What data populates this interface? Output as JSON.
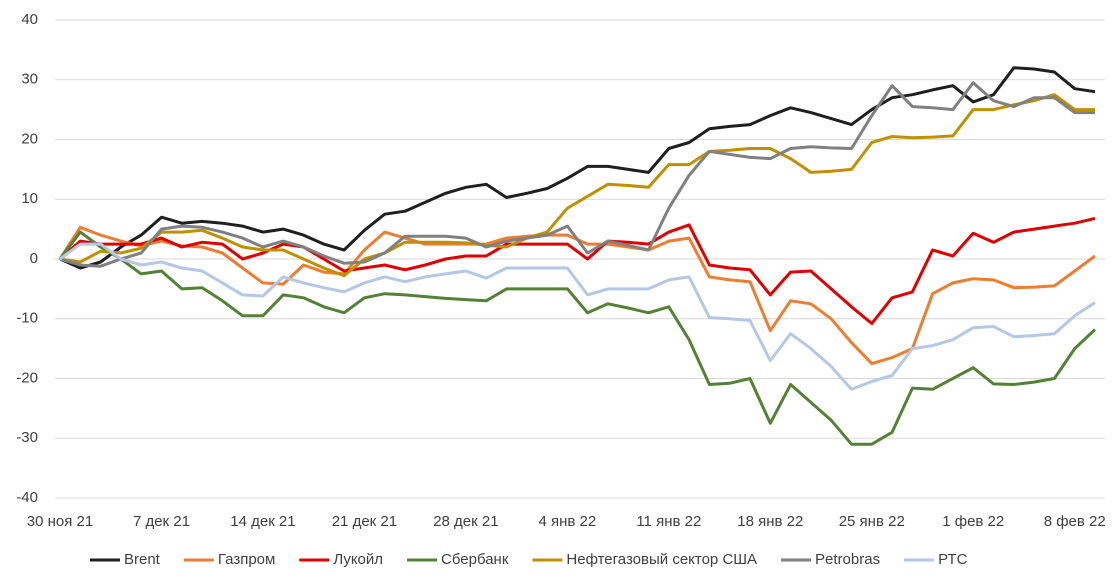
{
  "chart_data": {
    "type": "line",
    "categories": [
      "30 ноя 21",
      null,
      null,
      null,
      null,
      "7 дек 21",
      null,
      null,
      null,
      null,
      "14 дек 21",
      null,
      null,
      null,
      null,
      "21 дек 21",
      null,
      null,
      null,
      null,
      "28 дек 21",
      null,
      null,
      null,
      null,
      "4 янв 22",
      null,
      null,
      null,
      null,
      "11 янв 22",
      null,
      null,
      null,
      null,
      "18 янв 22",
      null,
      null,
      null,
      null,
      "25 янв 22",
      null,
      null,
      null,
      null,
      "1 фев 22",
      null,
      null,
      null,
      null,
      "8 фев 22",
      null
    ],
    "ylim": [
      -40,
      40
    ],
    "yticks": [
      -40,
      -30,
      -20,
      -10,
      0,
      10,
      20,
      30,
      40
    ],
    "grid": true,
    "legend": "bottom",
    "series": [
      {
        "name": "Brent",
        "color": "#1f1f1f",
        "values": [
          0,
          -1.5,
          -0.5,
          2,
          4,
          7,
          6,
          6.3,
          6,
          5.5,
          4.5,
          5,
          4,
          2.5,
          1.5,
          4.8,
          7.5,
          8,
          9.5,
          11,
          12,
          12.5,
          10.3,
          11,
          11.8,
          13.5,
          15.5,
          15.5,
          15,
          14.5,
          18.5,
          19.5,
          21.8,
          22.2,
          22.5,
          24,
          25.3,
          24.5,
          23.5,
          22.5,
          25,
          27,
          27.5,
          28.3,
          29,
          26.3,
          27.5,
          32,
          31.8,
          31.3,
          28.5,
          28
        ]
      },
      {
        "name": "Газпром",
        "color": "#ed7d31",
        "values": [
          0,
          5.3,
          4,
          3,
          2.2,
          3,
          2.2,
          2,
          1,
          -1.5,
          -4,
          -4.2,
          -1,
          -2.2,
          -2.5,
          1.5,
          4.5,
          3.5,
          2.5,
          2.5,
          2.5,
          2.5,
          3.5,
          3.8,
          4,
          4,
          2.5,
          2.5,
          2,
          1.5,
          3,
          3.5,
          -3,
          -3.5,
          -3.8,
          -12,
          -7,
          -7.5,
          -10,
          -14,
          -17.5,
          -16.5,
          -15,
          -5.8,
          -4,
          -3.3,
          -3.5,
          -4.8,
          -4.7,
          -4.5,
          -2,
          0.5
        ]
      },
      {
        "name": "Лукойл",
        "color": "#e00000",
        "values": [
          0,
          3,
          2.5,
          2.5,
          2.5,
          3.5,
          2,
          2.8,
          2.5,
          0,
          1,
          2.5,
          2,
          0,
          -2,
          -1.5,
          -1,
          -1.8,
          -1,
          0,
          0.5,
          0.5,
          2.5,
          2.5,
          2.5,
          2.5,
          0,
          3,
          2.8,
          2.5,
          4.5,
          5.7,
          -1,
          -1.5,
          -1.8,
          -6,
          -2.2,
          -2,
          -5,
          -8,
          -10.8,
          -6.5,
          -5.5,
          1.5,
          0.5,
          4.3,
          2.8,
          4.5,
          5,
          5.5,
          6,
          6.8
        ]
      },
      {
        "name": "Сбербанк",
        "color": "#548235",
        "values": [
          0,
          4.5,
          2,
          0,
          -2.5,
          -2,
          -5,
          -4.8,
          -7,
          -9.5,
          -9.5,
          -6,
          -6.5,
          -8,
          -9,
          -6.5,
          -5.8,
          -6,
          -6.3,
          -6.6,
          -6.8,
          -7,
          -5,
          -5,
          -5,
          -5,
          -9,
          -7.5,
          -8.2,
          -9,
          -8,
          -13.5,
          -21,
          -20.8,
          -20,
          -27.5,
          -21,
          -24,
          -27,
          -31,
          -31,
          -29,
          -21.6,
          -21.8,
          -20,
          -18.2,
          -20.9,
          -21,
          -20.6,
          -20,
          -15,
          -11.8
        ]
      },
      {
        "name": "Нефтегазовый сектор США",
        "color": "#bf9000",
        "values": [
          0,
          -0.5,
          1.3,
          1,
          1.8,
          4.5,
          4.5,
          4.8,
          3.5,
          2,
          1.5,
          1.5,
          0,
          -1.5,
          -2.8,
          0,
          1,
          2.8,
          2.8,
          2.8,
          2.7,
          2.3,
          2,
          3.5,
          4.5,
          8.5,
          10.5,
          12.5,
          12.3,
          12,
          15.8,
          15.8,
          18,
          18.2,
          18.5,
          18.5,
          16.8,
          14.5,
          14.7,
          15,
          19.5,
          20.5,
          20.3,
          20.4,
          20.6,
          25,
          25,
          25.8,
          26.5,
          27.5,
          25,
          25
        ]
      },
      {
        "name": "Petrobras",
        "color": "#808080",
        "values": [
          0,
          -1,
          -1.2,
          0,
          1,
          5,
          5.5,
          5.3,
          4.5,
          3.5,
          2,
          3,
          2,
          0.5,
          -0.7,
          -0.5,
          1,
          3.8,
          3.8,
          3.8,
          3.5,
          2,
          3,
          3.5,
          4,
          5.5,
          1,
          3,
          2.3,
          1.5,
          8.5,
          14,
          18,
          17.5,
          17,
          16.8,
          18.5,
          18.8,
          18.6,
          18.5,
          24,
          29,
          25.5,
          25.3,
          25,
          29.5,
          26.5,
          25.5,
          27,
          27,
          24.5,
          24.5
        ]
      },
      {
        "name": "РТС",
        "color": "#b4c7e7",
        "values": [
          0,
          2.5,
          2.5,
          0,
          -1,
          -0.5,
          -1.5,
          -2,
          -4,
          -6,
          -6.2,
          -3,
          -4,
          -4.8,
          -5.5,
          -4,
          -3,
          -3.8,
          -3,
          -2.5,
          -2,
          -3.2,
          -1.5,
          -1.5,
          -1.5,
          -1.5,
          -6,
          -5,
          -5,
          -5,
          -3.5,
          -3,
          -9.8,
          -10,
          -10.3,
          -17,
          -12.5,
          -15,
          -18,
          -21.8,
          -20.5,
          -19.5,
          -15,
          -14.5,
          -13.5,
          -11.5,
          -11.3,
          -13,
          -12.8,
          -12.5,
          -9.5,
          -7.3
        ]
      }
    ]
  }
}
